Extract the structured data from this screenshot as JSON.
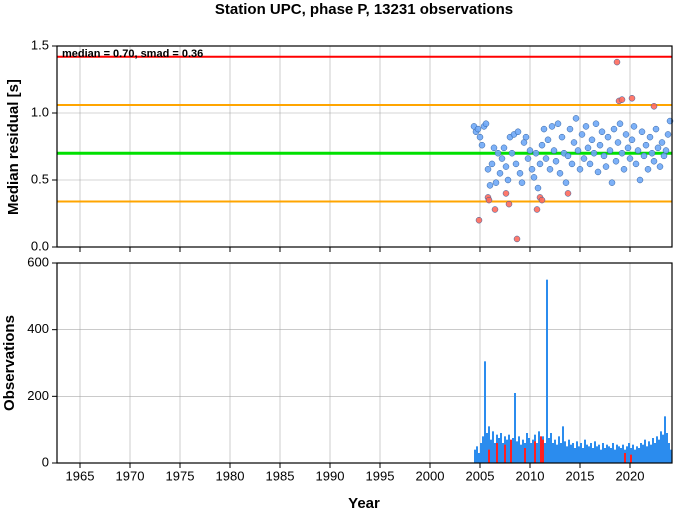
{
  "chart_data": [
    {
      "type": "scatter",
      "title": "Station UPC, phase P, 13231 observations",
      "ylabel": "Median residual [s]",
      "annotation": "median = 0.70, smad = 0.36",
      "xlim": [
        1962.7,
        2024.2
      ],
      "xticks": [
        1965,
        1970,
        1975,
        1980,
        1985,
        1990,
        1995,
        2000,
        2005,
        2010,
        2015,
        2020
      ],
      "ylim": [
        0,
        1.5
      ],
      "yticks": [
        {
          "value": 0,
          "label": "0.0"
        },
        {
          "value": 0.5,
          "label": "0.5"
        },
        {
          "value": 1,
          "label": "1.0"
        },
        {
          "value": 1.5,
          "label": "1.5"
        }
      ],
      "grid": true,
      "reference_lines": [
        {
          "value": 1.42,
          "color": "#ff0000"
        },
        {
          "value": 1.06,
          "color": "#ffa500"
        },
        {
          "value": 0.7,
          "color": "#00e000"
        },
        {
          "value": 0.34,
          "color": "#ffa500"
        }
      ],
      "series": [
        {
          "color": "#6fa8f7",
          "x": [
            2004.4,
            2004.6,
            2004.8,
            2005.0,
            2005.2,
            2005.4,
            2005.6,
            2005.8,
            2006.0,
            2006.2,
            2006.4,
            2006.6,
            2006.8,
            2007.0,
            2007.2,
            2007.4,
            2007.6,
            2007.8,
            2008.0,
            2008.2,
            2008.4,
            2008.6,
            2008.8,
            2009.0,
            2009.2,
            2009.4,
            2009.6,
            2009.8,
            2010.0,
            2010.2,
            2010.4,
            2010.6,
            2010.8,
            2011.0,
            2011.2,
            2011.4,
            2011.6,
            2011.8,
            2012.0,
            2012.2,
            2012.4,
            2012.6,
            2012.8,
            2013.0,
            2013.2,
            2013.4,
            2013.6,
            2013.8,
            2014.0,
            2014.2,
            2014.4,
            2014.6,
            2014.8,
            2015.0,
            2015.2,
            2015.4,
            2015.6,
            2015.8,
            2016.0,
            2016.2,
            2016.4,
            2016.6,
            2016.8,
            2017.0,
            2017.2,
            2017.4,
            2017.6,
            2017.8,
            2018.0,
            2018.2,
            2018.4,
            2018.6,
            2018.8,
            2019.0,
            2019.2,
            2019.4,
            2019.6,
            2019.8,
            2020.0,
            2020.2,
            2020.4,
            2020.6,
            2020.8,
            2021.0,
            2021.2,
            2021.4,
            2021.6,
            2021.8,
            2022.0,
            2022.2,
            2022.4,
            2022.6,
            2022.8,
            2023.0,
            2023.2,
            2023.4,
            2023.6,
            2023.8,
            2024.0
          ],
          "values": [
            0.9,
            0.86,
            0.88,
            0.82,
            0.76,
            0.9,
            0.92,
            0.58,
            0.46,
            0.62,
            0.74,
            0.48,
            0.7,
            0.55,
            0.66,
            0.74,
            0.6,
            0.5,
            0.82,
            0.7,
            0.84,
            0.62,
            0.86,
            0.55,
            0.48,
            0.78,
            0.82,
            0.66,
            0.72,
            0.58,
            0.52,
            0.7,
            0.44,
            0.62,
            0.76,
            0.88,
            0.66,
            0.8,
            0.58,
            0.9,
            0.72,
            0.64,
            0.92,
            0.55,
            0.82,
            0.7,
            0.48,
            0.68,
            0.88,
            0.62,
            0.78,
            0.96,
            0.72,
            0.58,
            0.84,
            0.66,
            0.9,
            0.74,
            0.62,
            0.8,
            0.7,
            0.92,
            0.56,
            0.76,
            0.86,
            0.68,
            0.6,
            0.82,
            0.72,
            0.48,
            0.88,
            0.64,
            0.78,
            0.92,
            0.7,
            0.58,
            0.84,
            0.74,
            0.66,
            0.8,
            0.9,
            0.62,
            0.72,
            0.5,
            0.86,
            0.68,
            0.76,
            0.58,
            0.82,
            0.7,
            0.64,
            0.88,
            0.74,
            0.6,
            0.78,
            0.68,
            0.72,
            0.84,
            0.94
          ]
        },
        {
          "color": "#ff6a5c",
          "x": [
            2004.9,
            2005.8,
            2005.9,
            2006.5,
            2007.6,
            2007.9,
            2008.7,
            2010.7,
            2011.0,
            2011.2,
            2013.8,
            2018.7,
            2018.9,
            2019.2,
            2020.2,
            2022.4
          ],
          "values": [
            0.2,
            0.37,
            0.35,
            0.28,
            0.4,
            0.32,
            0.06,
            0.28,
            0.37,
            0.35,
            0.4,
            1.38,
            1.09,
            1.1,
            1.11,
            1.05
          ]
        }
      ]
    },
    {
      "type": "bar",
      "ylabel": "Observations",
      "xlabel": "Year",
      "xlim": [
        1962.7,
        2024.2
      ],
      "xticks": [
        1965,
        1970,
        1975,
        1980,
        1985,
        1990,
        1995,
        2000,
        2005,
        2010,
        2015,
        2020
      ],
      "ylim": [
        0,
        600
      ],
      "yticks": [
        0,
        200,
        400,
        600
      ],
      "grid": true,
      "bar_width": 0.2,
      "series": [
        {
          "color": "#2b8cee",
          "x": [
            2004.4,
            2004.6,
            2004.8,
            2005.0,
            2005.2,
            2005.4,
            2005.6,
            2005.8,
            2006.0,
            2006.2,
            2006.4,
            2006.6,
            2006.8,
            2007.0,
            2007.2,
            2007.4,
            2007.6,
            2007.8,
            2008.0,
            2008.2,
            2008.4,
            2008.6,
            2008.8,
            2009.0,
            2009.2,
            2009.4,
            2009.6,
            2009.8,
            2010.0,
            2010.2,
            2010.4,
            2010.6,
            2010.8,
            2011.0,
            2011.2,
            2011.4,
            2011.6,
            2011.8,
            2012.0,
            2012.2,
            2012.4,
            2012.6,
            2012.8,
            2013.0,
            2013.2,
            2013.4,
            2013.6,
            2013.8,
            2014.0,
            2014.2,
            2014.4,
            2014.6,
            2014.8,
            2015.0,
            2015.2,
            2015.4,
            2015.6,
            2015.8,
            2016.0,
            2016.2,
            2016.4,
            2016.6,
            2016.8,
            2017.0,
            2017.2,
            2017.4,
            2017.6,
            2017.8,
            2018.0,
            2018.2,
            2018.4,
            2018.6,
            2018.8,
            2019.0,
            2019.2,
            2019.4,
            2019.6,
            2019.8,
            2020.0,
            2020.2,
            2020.4,
            2020.6,
            2020.8,
            2021.0,
            2021.2,
            2021.4,
            2021.6,
            2021.8,
            2022.0,
            2022.2,
            2022.4,
            2022.6,
            2022.8,
            2023.0,
            2023.2,
            2023.4,
            2023.6,
            2023.8,
            2024.0
          ],
          "values": [
            40,
            50,
            30,
            60,
            80,
            305,
            90,
            110,
            70,
            95,
            60,
            85,
            75,
            90,
            60,
            80,
            70,
            85,
            60,
            75,
            210,
            65,
            80,
            55,
            70,
            60,
            90,
            75,
            60,
            70,
            85,
            60,
            95,
            70,
            80,
            60,
            550,
            75,
            90,
            60,
            70,
            55,
            80,
            60,
            110,
            65,
            50,
            70,
            55,
            60,
            45,
            65,
            50,
            60,
            45,
            70,
            55,
            50,
            60,
            45,
            65,
            50,
            55,
            40,
            60,
            45,
            55,
            50,
            45,
            60,
            40,
            55,
            50,
            45,
            55,
            40,
            50,
            60,
            45,
            55,
            40,
            50,
            45,
            60,
            55,
            70,
            50,
            65,
            55,
            75,
            60,
            80,
            70,
            95,
            85,
            140,
            90,
            60,
            40
          ]
        },
        {
          "color": "#ff2020",
          "x": [
            2005.8,
            2006.6,
            2007.4,
            2008.0,
            2009.4,
            2010.4,
            2011.0,
            2011.2,
            2019.4,
            2020.0
          ],
          "values": [
            40,
            60,
            55,
            70,
            45,
            65,
            80,
            70,
            30,
            25
          ]
        }
      ]
    }
  ]
}
